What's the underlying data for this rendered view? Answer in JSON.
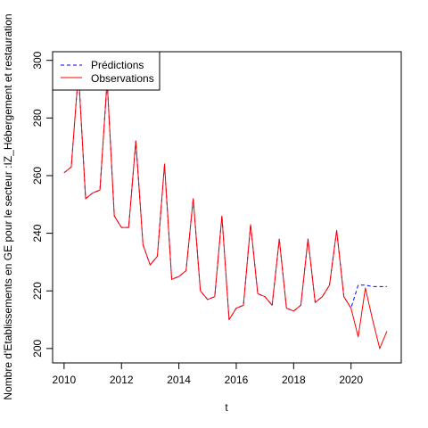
{
  "chart_data": {
    "type": "line",
    "title": "",
    "xlabel": "t",
    "ylabel": "Nombre d'Etablissements en GE pour le secteur :IZ_Hébergement et restauration",
    "xlim": [
      2009.6,
      2021.75
    ],
    "ylim": [
      195,
      303
    ],
    "x_ticks": [
      2010,
      2012,
      2014,
      2016,
      2018,
      2020
    ],
    "y_ticks": [
      200,
      220,
      240,
      260,
      280,
      300
    ],
    "grid": false,
    "legend_position": "top-left",
    "series": [
      {
        "name": "Prédictions",
        "style": "dashed",
        "color": "#0000ff",
        "x": [
          2010.0,
          2010.25,
          2010.5,
          2010.75,
          2011.0,
          2011.25,
          2011.5,
          2011.75,
          2012.0,
          2012.25,
          2012.5,
          2012.75,
          2013.0,
          2013.25,
          2013.5,
          2013.75,
          2014.0,
          2014.25,
          2014.5,
          2014.75,
          2015.0,
          2015.25,
          2015.5,
          2015.75,
          2016.0,
          2016.25,
          2016.5,
          2016.75,
          2017.0,
          2017.25,
          2017.5,
          2017.75,
          2018.0,
          2018.25,
          2018.5,
          2018.75,
          2019.0,
          2019.25,
          2019.5,
          2019.75,
          2020.0,
          2020.25,
          2020.5,
          2020.75,
          2021.0,
          2021.25
        ],
        "values": [
          261,
          263,
          296,
          252,
          254,
          255,
          293,
          246,
          242,
          242,
          272,
          236,
          229,
          232,
          264,
          224,
          225,
          227,
          252,
          220,
          217,
          218,
          246,
          210,
          214,
          215,
          243,
          219,
          218,
          215,
          238,
          214,
          213,
          215,
          238,
          216,
          218,
          222,
          241,
          218,
          214,
          222,
          222,
          221.5,
          221.5,
          221.5
        ]
      },
      {
        "name": "Observations",
        "style": "solid",
        "color": "#ff0000",
        "x": [
          2010.0,
          2010.25,
          2010.5,
          2010.75,
          2011.0,
          2011.25,
          2011.5,
          2011.75,
          2012.0,
          2012.25,
          2012.5,
          2012.75,
          2013.0,
          2013.25,
          2013.5,
          2013.75,
          2014.0,
          2014.25,
          2014.5,
          2014.75,
          2015.0,
          2015.25,
          2015.5,
          2015.75,
          2016.0,
          2016.25,
          2016.5,
          2016.75,
          2017.0,
          2017.25,
          2017.5,
          2017.75,
          2018.0,
          2018.25,
          2018.5,
          2018.75,
          2019.0,
          2019.25,
          2019.5,
          2019.75,
          2020.0,
          2020.25,
          2020.5,
          2020.75,
          2021.0,
          2021.25
        ],
        "values": [
          261,
          263,
          296,
          252,
          254,
          255,
          293,
          246,
          242,
          242,
          272,
          236,
          229,
          232,
          264,
          224,
          225,
          227,
          252,
          220,
          217,
          218,
          246,
          210,
          214,
          215,
          243,
          219,
          218,
          215,
          238,
          214,
          213,
          215,
          238,
          216,
          218,
          222,
          241,
          218,
          214,
          204,
          221,
          210,
          200,
          206
        ]
      }
    ]
  }
}
